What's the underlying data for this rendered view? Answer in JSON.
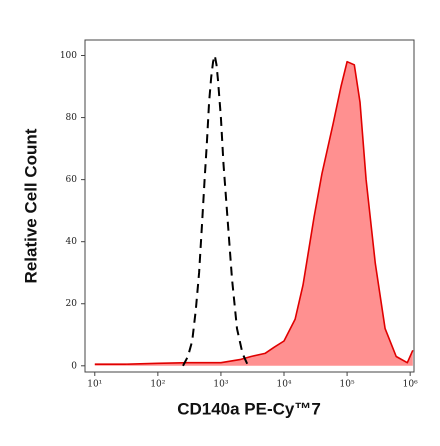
{
  "chart_data": {
    "type": "line",
    "x_label": "CD140a PE-Cy™7",
    "y_label": "Relative Cell Count",
    "xscale": "log",
    "xlim": [
      7,
      1150000
    ],
    "ylim": [
      -2,
      105
    ],
    "xticks": [
      {
        "value": 10,
        "label": "10¹"
      },
      {
        "value": 100,
        "label": "10²"
      },
      {
        "value": 1000,
        "label": "10³"
      },
      {
        "value": 10000,
        "label": "10⁴"
      },
      {
        "value": 100000,
        "label": "10⁵"
      },
      {
        "value": 1000000,
        "label": "10⁶"
      }
    ],
    "yticks": [
      0,
      20,
      40,
      60,
      80,
      100
    ],
    "series": [
      {
        "color": "#e00000",
        "fill": "#ff9090",
        "dash": false,
        "x": [
          10,
          30,
          100,
          300,
          1000,
          2000,
          3000,
          5000,
          7000,
          10000,
          15000,
          20000,
          30000,
          40000,
          60000,
          80000,
          100000,
          130000,
          160000,
          200000,
          280000,
          400000,
          600000,
          900000,
          1100000
        ],
        "values": [
          0.5,
          0.5,
          0.8,
          1,
          1,
          2,
          3,
          4,
          6,
          8,
          15,
          26,
          48,
          62,
          78,
          90,
          98,
          97,
          85,
          60,
          33,
          12,
          3,
          1,
          5
        ]
      },
      {
        "color": "#000000",
        "fill": null,
        "dash": true,
        "x": [
          250,
          300,
          350,
          400,
          450,
          500,
          550,
          600,
          650,
          700,
          750,
          800,
          850,
          900,
          1000,
          1100,
          1300,
          1500,
          1800,
          2200,
          2700
        ],
        "values": [
          0,
          3,
          8,
          18,
          30,
          45,
          60,
          72,
          85,
          93,
          98,
          100,
          97,
          92,
          80,
          65,
          45,
          28,
          12,
          4,
          0
        ]
      }
    ]
  }
}
